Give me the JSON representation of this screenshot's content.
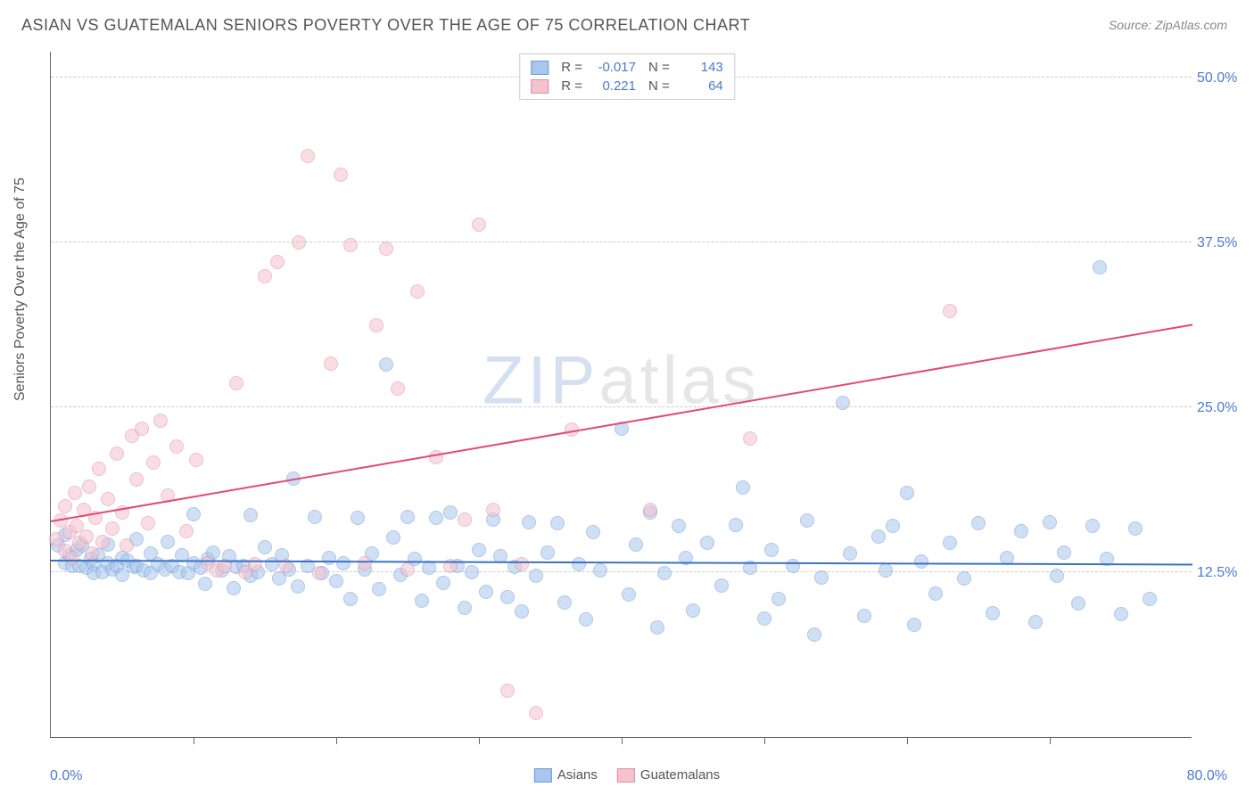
{
  "chart": {
    "type": "scatter-correlation",
    "title": "ASIAN VS GUATEMALAN SENIORS POVERTY OVER THE AGE OF 75 CORRELATION CHART",
    "source_label": "Source:",
    "source_name": "ZipAtlas.com",
    "ylabel": "Seniors Poverty Over the Age of 75",
    "watermark_z": "ZIP",
    "watermark_rest": "atlas",
    "background_color": "#ffffff",
    "grid_color": "#cccccc",
    "axis_color": "#666666",
    "title_fontsize": 18,
    "label_fontsize": 16,
    "value_color": "#4a7bd0",
    "xlim": [
      0,
      80
    ],
    "ylim": [
      0,
      52
    ],
    "xtick_step": 10,
    "x_min_label": "0.0%",
    "x_max_label": "80.0%",
    "y_gridlines": [
      {
        "v": 12.5,
        "label": "12.5%"
      },
      {
        "v": 25.0,
        "label": "25.0%"
      },
      {
        "v": 37.5,
        "label": "37.5%"
      },
      {
        "v": 50.0,
        "label": "50.0%"
      }
    ],
    "marker_radius": 8,
    "marker_opacity": 0.55,
    "line_width": 2,
    "series": [
      {
        "name": "Asians",
        "color_fill": "#a9c6ec",
        "color_stroke": "#6b9bd8",
        "trend_color": "#3b72c4",
        "r": "-0.017",
        "n": "143",
        "trend": {
          "x1": 0,
          "y1": 13.3,
          "x2": 80,
          "y2": 13.0
        },
        "points": [
          [
            0.5,
            14.5
          ],
          [
            1,
            15.3
          ],
          [
            1,
            13.2
          ],
          [
            1.3,
            13.8
          ],
          [
            1.5,
            13.0
          ],
          [
            1.8,
            14.2
          ],
          [
            2,
            13.0
          ],
          [
            2.2,
            14.5
          ],
          [
            2.5,
            12.8
          ],
          [
            2.8,
            13.5
          ],
          [
            3,
            13.1
          ],
          [
            3,
            12.4
          ],
          [
            3.3,
            13.8
          ],
          [
            3.6,
            12.5
          ],
          [
            4,
            13.2
          ],
          [
            4,
            14.6
          ],
          [
            4.3,
            12.7
          ],
          [
            4.6,
            13.0
          ],
          [
            5,
            13.6
          ],
          [
            5,
            12.3
          ],
          [
            5.4,
            13.4
          ],
          [
            5.8,
            12.9
          ],
          [
            6,
            15.0
          ],
          [
            6,
            13.0
          ],
          [
            6.5,
            12.6
          ],
          [
            7,
            13.9
          ],
          [
            7,
            12.4
          ],
          [
            7.5,
            13.1
          ],
          [
            8,
            12.7
          ],
          [
            8.2,
            14.8
          ],
          [
            8.5,
            13.0
          ],
          [
            9,
            12.5
          ],
          [
            9.2,
            13.8
          ],
          [
            9.6,
            12.4
          ],
          [
            10,
            13.2
          ],
          [
            10,
            16.9
          ],
          [
            10.5,
            12.8
          ],
          [
            10.8,
            11.6
          ],
          [
            11,
            13.5
          ],
          [
            11.4,
            14.0
          ],
          [
            12,
            12.6
          ],
          [
            12.5,
            13.7
          ],
          [
            12.8,
            11.3
          ],
          [
            13,
            12.9
          ],
          [
            13.5,
            13.0
          ],
          [
            14,
            12.2
          ],
          [
            14,
            16.8
          ],
          [
            14.5,
            12.5
          ],
          [
            15,
            14.4
          ],
          [
            15.5,
            13.1
          ],
          [
            16,
            12.0
          ],
          [
            16.2,
            13.8
          ],
          [
            16.7,
            12.7
          ],
          [
            17,
            19.6
          ],
          [
            17.3,
            11.4
          ],
          [
            18,
            13.0
          ],
          [
            18.5,
            16.7
          ],
          [
            19,
            12.4
          ],
          [
            19.5,
            13.6
          ],
          [
            20,
            11.8
          ],
          [
            20.5,
            13.2
          ],
          [
            21,
            10.5
          ],
          [
            21.5,
            16.6
          ],
          [
            22,
            12.7
          ],
          [
            22.5,
            13.9
          ],
          [
            23,
            11.2
          ],
          [
            23.5,
            28.2
          ],
          [
            24,
            15.1
          ],
          [
            24.5,
            12.3
          ],
          [
            25,
            16.7
          ],
          [
            25.5,
            13.5
          ],
          [
            26,
            10.3
          ],
          [
            26.5,
            12.8
          ],
          [
            27,
            16.6
          ],
          [
            27.5,
            11.7
          ],
          [
            28,
            17.0
          ],
          [
            28.5,
            13.0
          ],
          [
            29,
            9.8
          ],
          [
            29.5,
            12.5
          ],
          [
            30,
            14.2
          ],
          [
            30.5,
            11.0
          ],
          [
            31,
            16.5
          ],
          [
            31.5,
            13.7
          ],
          [
            32,
            10.6
          ],
          [
            32.5,
            12.9
          ],
          [
            33,
            9.5
          ],
          [
            33.5,
            16.3
          ],
          [
            34,
            12.2
          ],
          [
            34.8,
            14.0
          ],
          [
            35.5,
            16.2
          ],
          [
            36,
            10.2
          ],
          [
            37,
            13.1
          ],
          [
            37.5,
            8.9
          ],
          [
            38,
            15.5
          ],
          [
            38.5,
            12.6
          ],
          [
            40,
            23.4
          ],
          [
            40.5,
            10.8
          ],
          [
            41,
            14.6
          ],
          [
            42,
            17.0
          ],
          [
            42.5,
            8.3
          ],
          [
            43,
            12.4
          ],
          [
            44,
            16.0
          ],
          [
            44.5,
            13.6
          ],
          [
            45,
            9.6
          ],
          [
            46,
            14.7
          ],
          [
            47,
            11.5
          ],
          [
            48,
            16.1
          ],
          [
            48.5,
            18.9
          ],
          [
            49,
            12.8
          ],
          [
            50,
            9.0
          ],
          [
            50.5,
            14.2
          ],
          [
            51,
            10.5
          ],
          [
            52,
            13.0
          ],
          [
            53,
            16.4
          ],
          [
            53.5,
            7.8
          ],
          [
            54,
            12.1
          ],
          [
            55.5,
            25.3
          ],
          [
            56,
            13.9
          ],
          [
            57,
            9.2
          ],
          [
            58,
            15.2
          ],
          [
            58.5,
            12.6
          ],
          [
            59,
            16.0
          ],
          [
            60,
            18.5
          ],
          [
            60.5,
            8.5
          ],
          [
            61,
            13.3
          ],
          [
            62,
            10.9
          ],
          [
            63,
            14.7
          ],
          [
            64,
            12.0
          ],
          [
            65,
            16.2
          ],
          [
            66,
            9.4
          ],
          [
            67,
            13.6
          ],
          [
            68,
            15.6
          ],
          [
            69,
            8.7
          ],
          [
            70,
            16.3
          ],
          [
            70.5,
            12.2
          ],
          [
            71,
            14.0
          ],
          [
            72,
            10.1
          ],
          [
            73,
            16.0
          ],
          [
            73.5,
            35.6
          ],
          [
            74,
            13.5
          ],
          [
            75,
            9.3
          ],
          [
            76,
            15.8
          ],
          [
            77,
            10.5
          ]
        ]
      },
      {
        "name": "Guatemalans",
        "color_fill": "#f4c3cf",
        "color_stroke": "#e38aa2",
        "trend_color": "#e24a72",
        "r": "0.221",
        "n": "64",
        "trend": {
          "x1": 0,
          "y1": 16.3,
          "x2": 80,
          "y2": 31.2
        },
        "points": [
          [
            0.4,
            15.0
          ],
          [
            0.7,
            16.4
          ],
          [
            1,
            14.1
          ],
          [
            1,
            17.5
          ],
          [
            1.3,
            15.5
          ],
          [
            1.5,
            13.6
          ],
          [
            1.7,
            18.5
          ],
          [
            1.8,
            16.0
          ],
          [
            2,
            14.7
          ],
          [
            2.3,
            17.2
          ],
          [
            2.5,
            15.2
          ],
          [
            2.7,
            19.0
          ],
          [
            2.9,
            13.9
          ],
          [
            3.1,
            16.6
          ],
          [
            3.4,
            20.3
          ],
          [
            3.6,
            14.8
          ],
          [
            4,
            18.0
          ],
          [
            4.3,
            15.8
          ],
          [
            4.6,
            21.5
          ],
          [
            5,
            17.0
          ],
          [
            5.3,
            14.5
          ],
          [
            5.7,
            22.8
          ],
          [
            6,
            19.5
          ],
          [
            6.4,
            23.4
          ],
          [
            6.8,
            16.2
          ],
          [
            7.2,
            20.8
          ],
          [
            7.7,
            24.0
          ],
          [
            8.2,
            18.3
          ],
          [
            8.8,
            22.0
          ],
          [
            9.5,
            15.6
          ],
          [
            10.2,
            21.0
          ],
          [
            11,
            13.2
          ],
          [
            11.6,
            12.6
          ],
          [
            12.2,
            13.0
          ],
          [
            13,
            26.8
          ],
          [
            13.6,
            12.5
          ],
          [
            14.3,
            13.1
          ],
          [
            15,
            34.9
          ],
          [
            15.9,
            36.0
          ],
          [
            16.5,
            13.0
          ],
          [
            17.4,
            37.5
          ],
          [
            18,
            44.0
          ],
          [
            18.8,
            12.4
          ],
          [
            19.6,
            28.3
          ],
          [
            20.3,
            42.6
          ],
          [
            21,
            37.3
          ],
          [
            22,
            13.2
          ],
          [
            22.8,
            31.2
          ],
          [
            23.5,
            37.0
          ],
          [
            24.3,
            26.4
          ],
          [
            25,
            12.7
          ],
          [
            25.7,
            33.8
          ],
          [
            27,
            21.2
          ],
          [
            28,
            13.0
          ],
          [
            29,
            16.5
          ],
          [
            30,
            38.8
          ],
          [
            31,
            17.2
          ],
          [
            32,
            3.5
          ],
          [
            33,
            13.1
          ],
          [
            34,
            1.8
          ],
          [
            36.5,
            23.3
          ],
          [
            42,
            17.2
          ],
          [
            49,
            22.6
          ],
          [
            63,
            32.3
          ]
        ]
      }
    ]
  }
}
